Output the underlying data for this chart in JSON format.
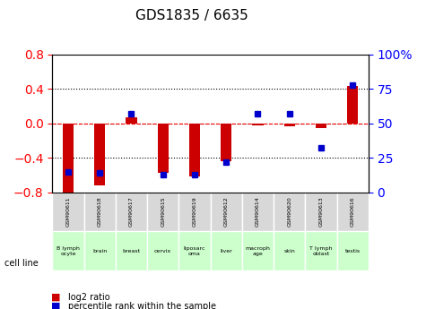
{
  "title": "GDS1835 / 6635",
  "samples": [
    "GSM90611",
    "GSM90618",
    "GSM90617",
    "GSM90615",
    "GSM90619",
    "GSM90612",
    "GSM90614",
    "GSM90620",
    "GSM90613",
    "GSM90616"
  ],
  "cell_lines": [
    "B lymph\nocyte",
    "brain",
    "breast",
    "cervix",
    "liposarc\noma",
    "liver",
    "macroph\nage",
    "skin",
    "T lymph\noblast",
    "testis"
  ],
  "cell_line_colors": [
    "#ccffcc",
    "#ccffcc",
    "#ccffcc",
    "#ccffcc",
    "#ccffcc",
    "#ccffcc",
    "#ccffcc",
    "#ccffcc",
    "#ccffcc",
    "#ccffcc"
  ],
  "log2_ratio": [
    -0.82,
    -0.72,
    0.07,
    -0.58,
    -0.62,
    -0.44,
    -0.02,
    -0.03,
    -0.05,
    0.43
  ],
  "percentile_rank": [
    15,
    14,
    57,
    13,
    13,
    22,
    57,
    57,
    32,
    78
  ],
  "ylim_left": [
    -0.8,
    0.8
  ],
  "ylim_right": [
    0,
    100
  ],
  "bar_color": "#cc0000",
  "dot_color": "#0000cc",
  "grid_color": "#000000",
  "bg_color": "#ffffff",
  "plot_bg": "#f0f0f0",
  "zero_line_color": "#ff0000",
  "xlabel": "",
  "ylabel_left": "",
  "ylabel_right": "",
  "legend_log2": "log2 ratio",
  "legend_pct": "percentile rank within the sample",
  "cell_line_label": "cell line",
  "bar_width": 0.35
}
